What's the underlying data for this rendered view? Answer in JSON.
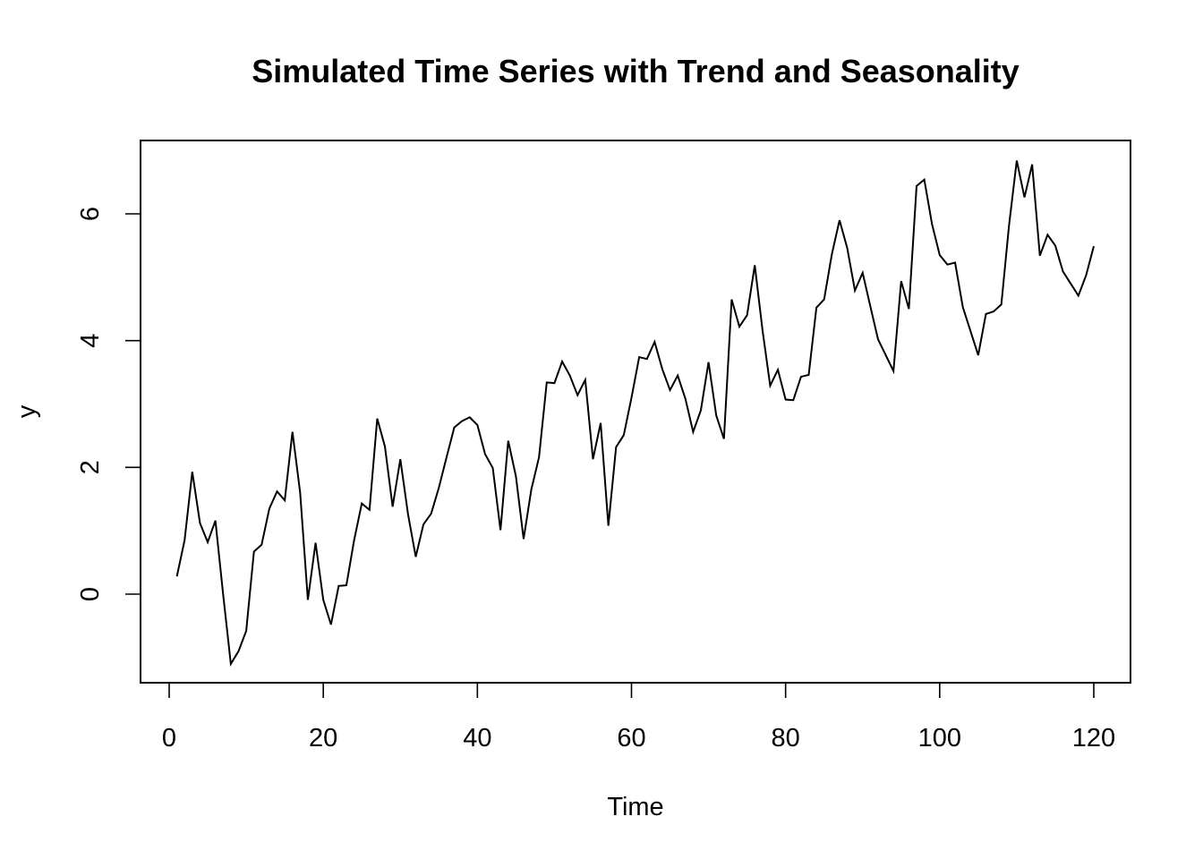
{
  "chart_data": {
    "type": "line",
    "title": "Simulated Time Series with Trend and Seasonality",
    "xlabel": "Time",
    "ylabel": "y",
    "xlim": [
      0,
      120
    ],
    "ylim": [
      -1.2,
      7.0
    ],
    "x_ticks": [
      0,
      20,
      40,
      60,
      80,
      100,
      120
    ],
    "y_ticks": [
      0,
      2,
      4,
      6
    ],
    "grid": false,
    "legend": "none",
    "line_color": "#000000",
    "series": [
      {
        "x": [
          1,
          2,
          3,
          4,
          5,
          6,
          7,
          8,
          9,
          10,
          11,
          12,
          13,
          14,
          15,
          16,
          17,
          18,
          19,
          20,
          21,
          22,
          23,
          24,
          25,
          26,
          27,
          28,
          29,
          30,
          31,
          32,
          33,
          34,
          35,
          36,
          37,
          38,
          39,
          40,
          41,
          42,
          43,
          44,
          45,
          46,
          47,
          48,
          49,
          50,
          51,
          52,
          53,
          54,
          55,
          56,
          57,
          58,
          59,
          60,
          61,
          62,
          63,
          64,
          65,
          66,
          67,
          68,
          69,
          70,
          71,
          72,
          73,
          74,
          75,
          76,
          77,
          78,
          79,
          80,
          81,
          82,
          83,
          84,
          85,
          86,
          87,
          88,
          89,
          90,
          91,
          92,
          93,
          94,
          95,
          96,
          97,
          98,
          99,
          100,
          101,
          102,
          103,
          104,
          105,
          106,
          107,
          108,
          109,
          110,
          111,
          112,
          113,
          114,
          115,
          116,
          117,
          118,
          119,
          120
        ],
        "values": [
          0.28,
          0.85,
          1.93,
          1.12,
          0.82,
          1.16,
          0.0,
          -1.1,
          -0.9,
          -0.58,
          0.67,
          0.78,
          1.35,
          1.62,
          1.48,
          2.56,
          1.6,
          -0.09,
          0.81,
          -0.09,
          -0.48,
          0.13,
          0.14,
          0.85,
          1.43,
          1.33,
          2.77,
          2.33,
          1.38,
          2.13,
          1.26,
          0.59,
          1.1,
          1.27,
          1.68,
          2.16,
          2.63,
          2.73,
          2.79,
          2.67,
          2.21,
          1.99,
          1.01,
          2.42,
          1.86,
          0.87,
          1.65,
          2.16,
          3.34,
          3.33,
          3.67,
          3.45,
          3.14,
          3.38,
          2.13,
          2.7,
          1.08,
          2.32,
          2.51,
          3.1,
          3.74,
          3.71,
          3.98,
          3.55,
          3.22,
          3.45,
          3.08,
          2.56,
          2.9,
          3.66,
          2.82,
          2.45,
          4.65,
          4.22,
          4.4,
          5.19,
          4.17,
          3.29,
          3.54,
          3.07,
          3.06,
          3.43,
          3.46,
          4.52,
          4.65,
          5.36,
          5.9,
          5.46,
          4.79,
          5.07,
          4.54,
          4.02,
          3.77,
          3.52,
          4.94,
          4.5,
          6.44,
          6.54,
          5.84,
          5.35,
          5.2,
          5.23,
          4.53,
          4.15,
          3.77,
          4.42,
          4.46,
          4.57,
          5.82,
          6.84,
          6.26,
          6.78,
          5.34,
          5.67,
          5.5,
          5.09,
          4.9,
          4.71,
          5.03,
          5.49
        ]
      }
    ]
  }
}
